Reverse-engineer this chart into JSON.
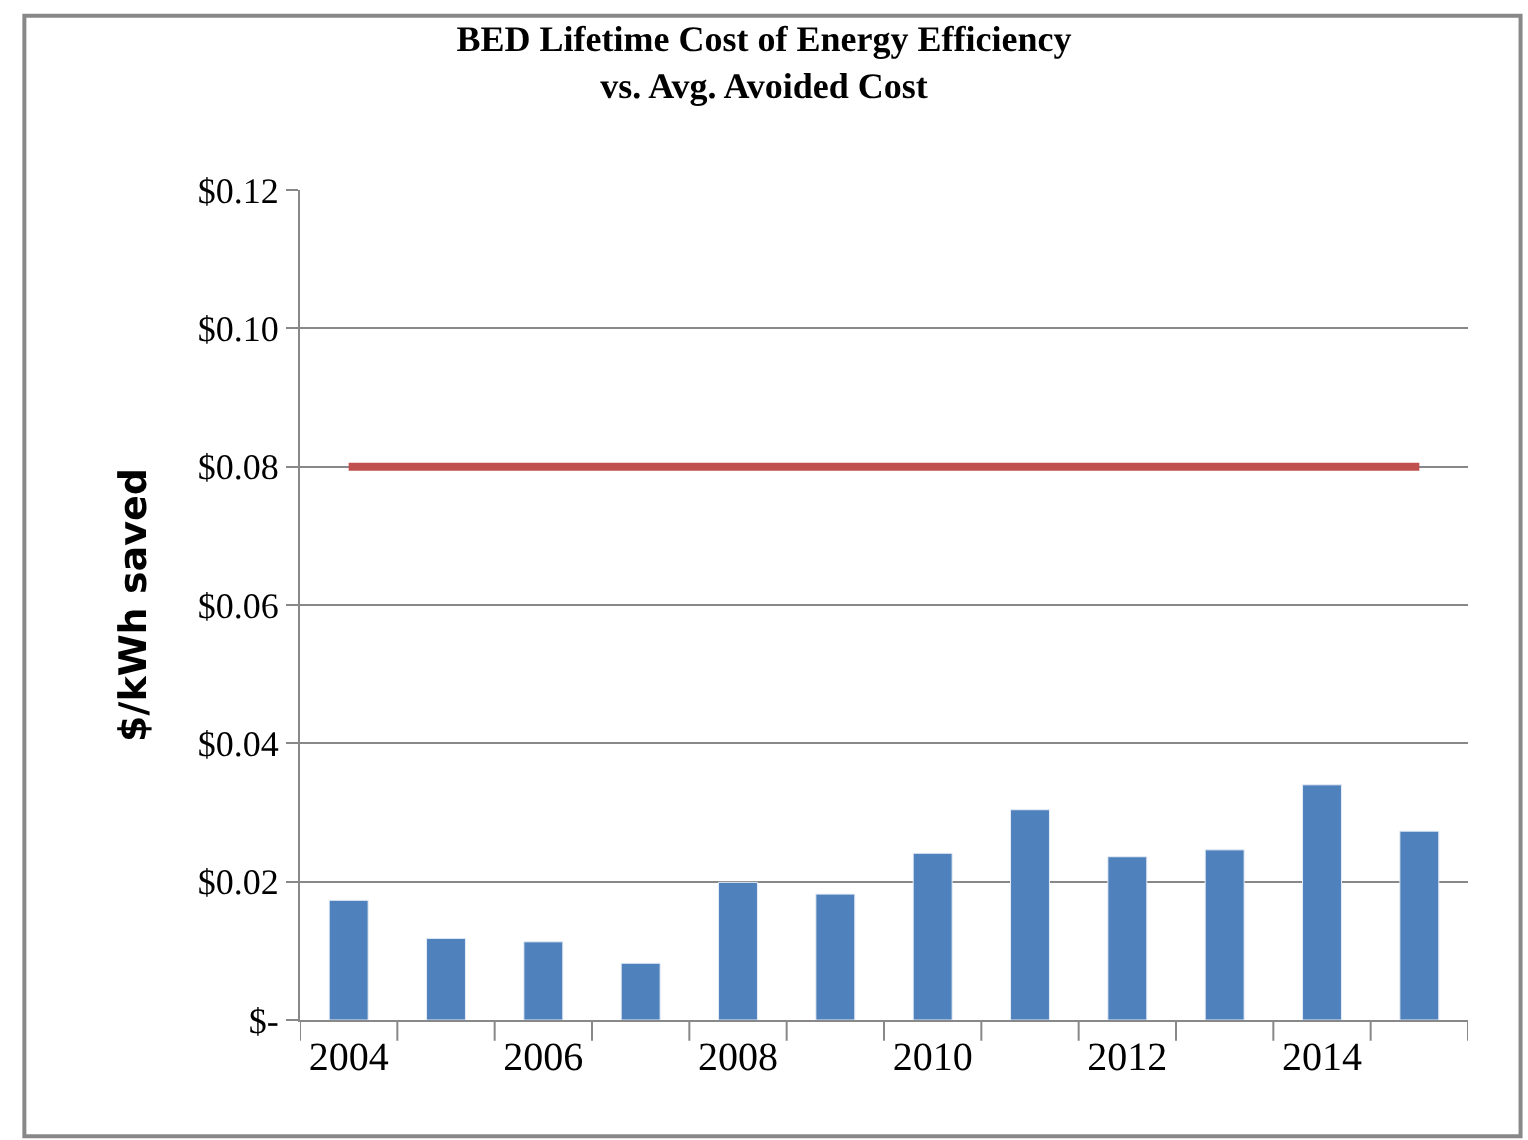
{
  "chart_data": {
    "type": "bar",
    "title": "BED Lifetime Cost of Energy Efficiency\nvs. Avg. Avoided Cost",
    "ylabel": "$/kWh saved",
    "categories": [
      "2004",
      null,
      "2006",
      null,
      "2008",
      null,
      "2010",
      null,
      "2012",
      null,
      "2014",
      null
    ],
    "series": [
      {
        "color": "#4f81bd",
        "values": [
          0.0173,
          0.0118,
          0.0113,
          0.0082,
          0.0199,
          0.0182,
          0.0241,
          0.0304,
          0.0236,
          0.0246,
          0.034,
          0.0273
        ]
      },
      {
        "type": "line",
        "color": "#c0504d",
        "values": [
          0.08,
          0.08,
          0.08,
          0.08,
          0.08,
          0.08,
          0.08,
          0.08,
          0.08,
          0.08,
          0.08,
          0.08
        ]
      }
    ],
    "ylim": [
      0,
      0.12
    ],
    "yticks": [
      {
        "value": 0,
        "label": "$-"
      },
      {
        "value": 0.02,
        "label": "$0.02"
      },
      {
        "value": 0.04,
        "label": "$0.04"
      },
      {
        "value": 0.06,
        "label": "$0.06"
      },
      {
        "value": 0.08,
        "label": "$0.08"
      },
      {
        "value": 0.1,
        "label": "$0.10"
      },
      {
        "value": 0.12,
        "label": "$0.12"
      }
    ],
    "grid": "y"
  }
}
